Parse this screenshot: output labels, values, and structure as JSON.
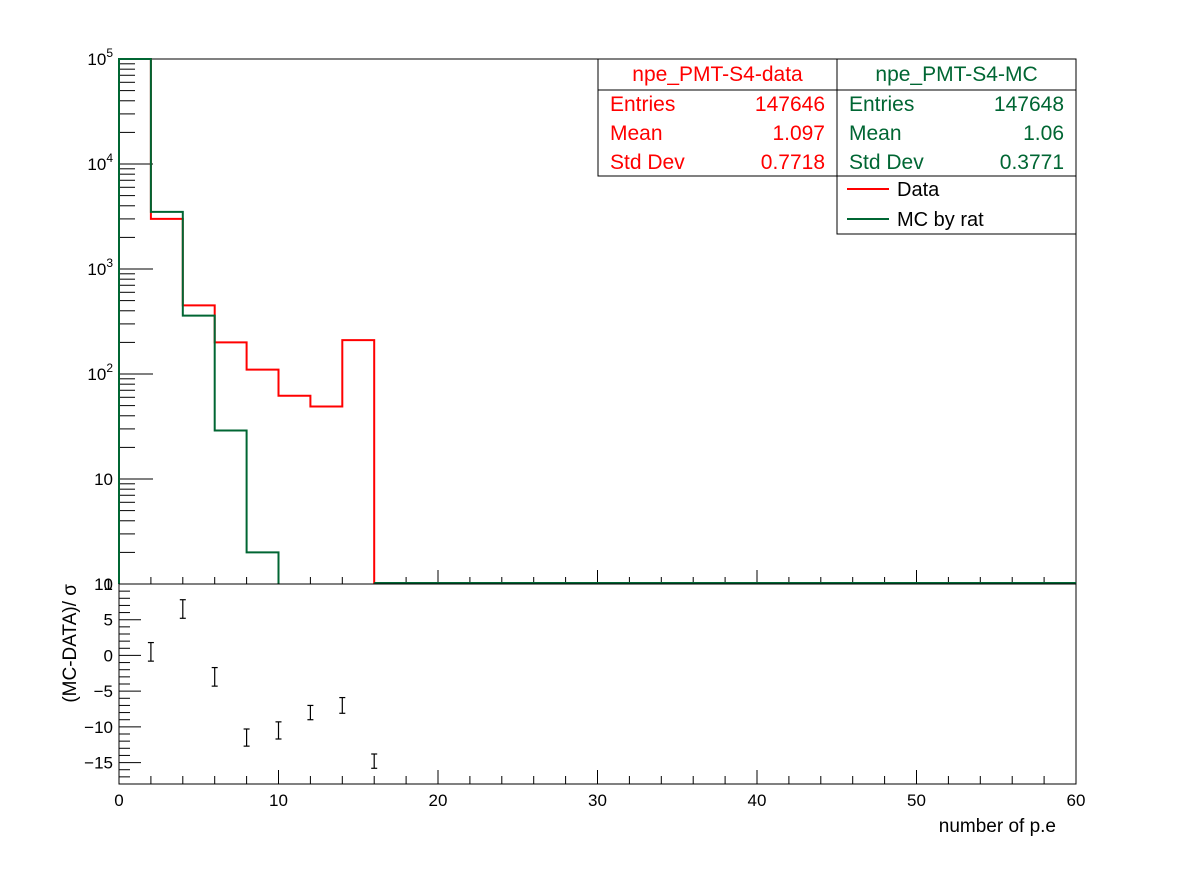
{
  "colors": {
    "data": "#ff0000",
    "mc": "#006633",
    "axis": "#000000",
    "background": "#ffffff"
  },
  "chart_data": [
    {
      "type": "histogram",
      "scale": "log-y",
      "xlim": [
        0,
        60
      ],
      "ylim": [
        1,
        100000
      ],
      "y_tick_labels": [
        "1",
        "10",
        "10^2",
        "10^3",
        "10^4",
        "10^5"
      ],
      "bin_width": 2,
      "series": [
        {
          "key": "data",
          "name": "Data",
          "bins": [
            {
              "x0": 0,
              "x1": 2,
              "y": 100000
            },
            {
              "x0": 2,
              "x1": 4,
              "y": 3000
            },
            {
              "x0": 4,
              "x1": 6,
              "y": 450
            },
            {
              "x0": 6,
              "x1": 8,
              "y": 200
            },
            {
              "x0": 8,
              "x1": 10,
              "y": 110
            },
            {
              "x0": 10,
              "x1": 12,
              "y": 62
            },
            {
              "x0": 12,
              "x1": 14,
              "y": 49
            },
            {
              "x0": 14,
              "x1": 16,
              "y": 210
            }
          ]
        },
        {
          "key": "mc",
          "name": "MC by rat",
          "bins": [
            {
              "x0": 0,
              "x1": 2,
              "y": 100000
            },
            {
              "x0": 2,
              "x1": 4,
              "y": 3500
            },
            {
              "x0": 4,
              "x1": 6,
              "y": 360
            },
            {
              "x0": 6,
              "x1": 8,
              "y": 29
            },
            {
              "x0": 8,
              "x1": 10,
              "y": 2
            }
          ]
        }
      ],
      "stats_boxes": [
        {
          "key": "data",
          "title": "npe_PMT-S4-data",
          "rows": [
            {
              "label": "Entries",
              "value": "147646"
            },
            {
              "label": "Mean",
              "value": "1.097"
            },
            {
              "label": "Std Dev",
              "value": "0.7718"
            }
          ]
        },
        {
          "key": "mc",
          "title": "npe_PMT-S4-MC",
          "rows": [
            {
              "label": "Entries",
              "value": "147648"
            },
            {
              "label": "Mean",
              "value": "1.06"
            },
            {
              "label": "Std Dev",
              "value": "0.3771"
            }
          ]
        }
      ],
      "legend": {
        "position": "top-right",
        "entries": [
          {
            "key": "data",
            "label": "Data"
          },
          {
            "key": "mc",
            "label": "MC by rat"
          }
        ]
      }
    },
    {
      "type": "scatter",
      "ylabel": "(MC-DATA)/ σ",
      "xlabel": "number of p.e",
      "xlim": [
        0,
        60
      ],
      "ylim": [
        -18,
        10
      ],
      "x_ticks": [
        0,
        10,
        20,
        30,
        40,
        50,
        60
      ],
      "y_ticks": [
        -15,
        -10,
        -5,
        0,
        5,
        10
      ],
      "points": [
        {
          "x": 2,
          "y": 0.5,
          "err": 1.3
        },
        {
          "x": 4,
          "y": 6.5,
          "err": 1.3
        },
        {
          "x": 6,
          "y": -3,
          "err": 1.3
        },
        {
          "x": 8,
          "y": -11.5,
          "err": 1.2
        },
        {
          "x": 10,
          "y": -10.5,
          "err": 1.2
        },
        {
          "x": 12,
          "y": -8,
          "err": 1.0
        },
        {
          "x": 14,
          "y": -7,
          "err": 1.1
        },
        {
          "x": 16,
          "y": -14.8,
          "err": 1.0
        }
      ]
    }
  ]
}
